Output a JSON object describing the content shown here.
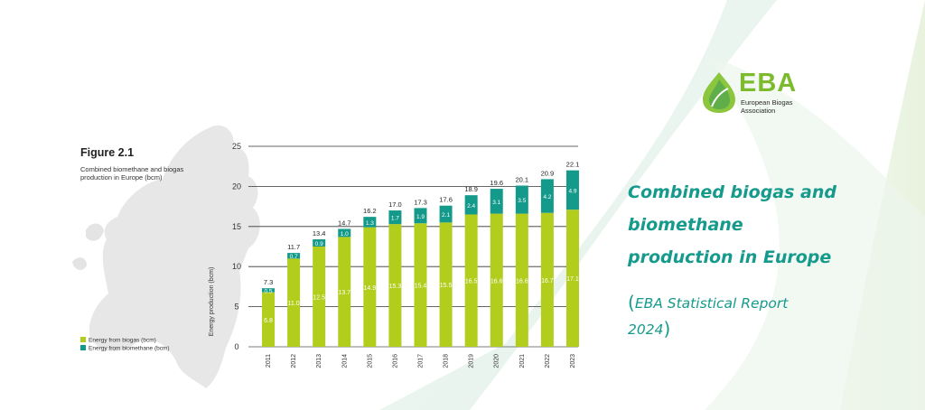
{
  "colors": {
    "biogas": "#b2cd1c",
    "biomethane": "#149a8a",
    "accent": "#159a8c",
    "brand_green": "#7dbb2e"
  },
  "logo": {
    "name": "EBA",
    "subtitle": "European Biogas Association"
  },
  "headline": {
    "line1": "Combined biogas and",
    "line2": "biomethane",
    "line3": "production in Europe"
  },
  "source": {
    "open": "(",
    "text1": "EBA Statistical Report",
    "text2": "2024",
    "close": ")"
  },
  "figure": {
    "title": "Figure 2.1",
    "subtitle": "Combined biomethane and biogas production in Europe (bcm)"
  },
  "chart_data": {
    "type": "bar",
    "stacked": true,
    "categories": [
      "2011",
      "2012",
      "2013",
      "2014",
      "2015",
      "2016",
      "2017",
      "2018",
      "2019",
      "2020",
      "2021",
      "2022",
      "2023"
    ],
    "series": [
      {
        "name": "Energy from biogas (bcm)",
        "values": [
          6.8,
          11.0,
          12.5,
          13.7,
          14.9,
          15.3,
          15.4,
          15.5,
          16.5,
          16.6,
          16.6,
          16.7,
          17.1
        ]
      },
      {
        "name": "Energy from biomethane (bcm)",
        "values": [
          0.5,
          0.7,
          0.9,
          1.0,
          1.3,
          1.7,
          1.9,
          2.1,
          2.4,
          3.1,
          3.5,
          4.2,
          4.9
        ]
      }
    ],
    "totals": [
      7.3,
      11.7,
      13.4,
      14.7,
      16.2,
      17.0,
      17.3,
      17.6,
      18.9,
      19.6,
      20.1,
      20.9,
      22.1
    ],
    "ylabel": "Energy production (bcm)",
    "ylim": [
      0,
      25
    ],
    "yticks": [
      0,
      5,
      10,
      15,
      20,
      25
    ],
    "gridlines": [
      5,
      10,
      15,
      20,
      25
    ],
    "legend_position": "bottom-left"
  }
}
